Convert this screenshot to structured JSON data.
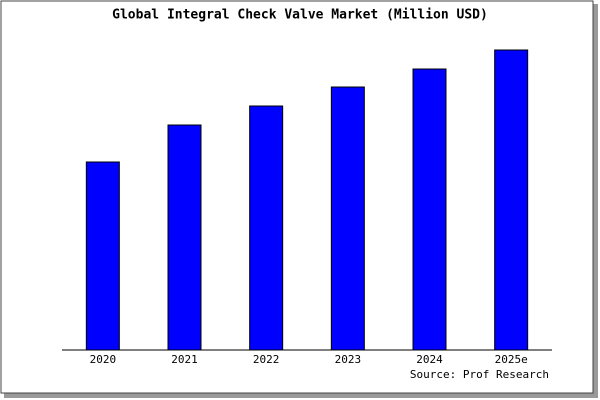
{
  "chart_data": {
    "type": "bar",
    "title": "Global Integral Check Valve Market (Million USD)",
    "categories": [
      "2020",
      "2021",
      "2022",
      "2023",
      "2024",
      "2025e"
    ],
    "values": [
      188,
      225,
      244,
      263,
      281,
      300
    ],
    "color": "#0000ff",
    "source": "Source: Prof Research"
  }
}
